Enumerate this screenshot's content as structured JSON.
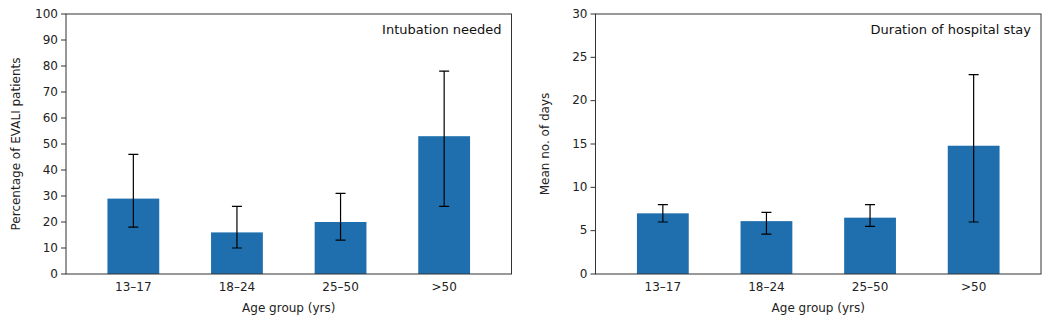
{
  "chart_data": [
    {
      "type": "bar",
      "title": "Intubation needed",
      "xlabel": "Age group (yrs)",
      "ylabel": "Percentage of EVALI patients",
      "categories": [
        "13–17",
        "18–24",
        "25–50",
        ">50"
      ],
      "values": [
        29,
        16,
        20,
        53
      ],
      "error_low": [
        11,
        6,
        7,
        27
      ],
      "error_high": [
        17,
        10,
        11,
        25
      ],
      "color": "#1F6FAE",
      "ylim": [
        0,
        100
      ],
      "yticks": [
        0,
        10,
        20,
        30,
        40,
        50,
        60,
        70,
        80,
        90,
        100
      ],
      "grid": false
    },
    {
      "type": "bar",
      "title": "Duration of hospital stay",
      "xlabel": "Age group (yrs)",
      "ylabel": "Mean no. of days",
      "categories": [
        "13–17",
        "18–24",
        "25–50",
        ">50"
      ],
      "values": [
        7.0,
        6.1,
        6.5,
        14.8
      ],
      "error_low": [
        1.0,
        1.5,
        1.0,
        8.8
      ],
      "error_high": [
        1.0,
        1.0,
        1.5,
        8.2
      ],
      "color": "#1F6FAE",
      "ylim": [
        0,
        30
      ],
      "yticks": [
        0,
        5,
        10,
        15,
        20,
        25,
        30
      ],
      "grid": false
    }
  ]
}
